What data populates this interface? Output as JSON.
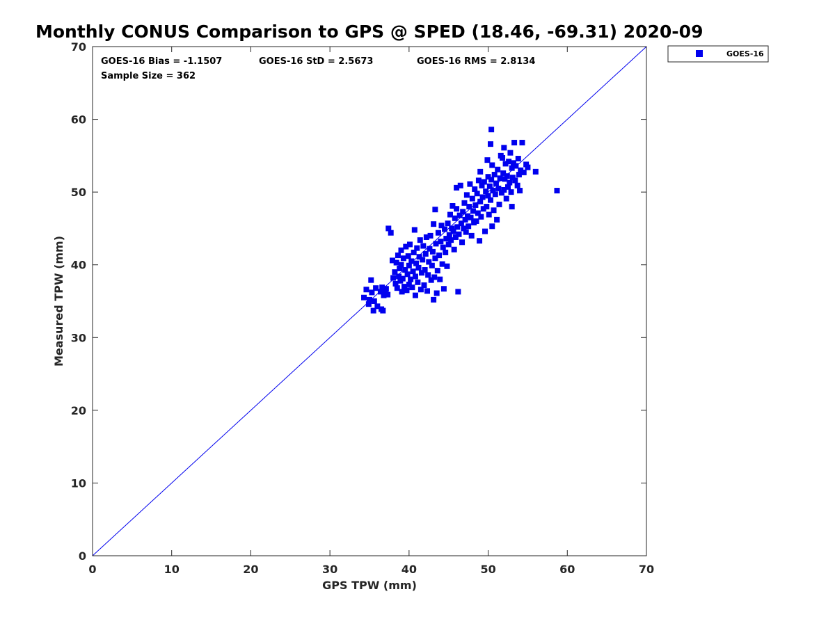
{
  "chart_data": {
    "type": "scatter",
    "title": "Monthly CONUS Comparison to GPS @ SPED (18.46, -69.31) 2020-09",
    "xlabel": "GPS TPW (mm)",
    "ylabel": "Measured TPW (mm)",
    "xlim": [
      0,
      70
    ],
    "ylim": [
      0,
      70
    ],
    "xticks": [
      0,
      10,
      20,
      30,
      40,
      50,
      60,
      70
    ],
    "yticks": [
      0,
      10,
      20,
      30,
      40,
      50,
      60,
      70
    ],
    "grid": false,
    "legend_position": "outside-top-right",
    "annotations": [
      "GOES-16 Bias = -1.1507",
      "GOES-16 StD = 2.5673",
      "GOES-16 RMS = 2.8134",
      "Sample Size = 362"
    ],
    "reference_line": {
      "x": [
        0,
        70
      ],
      "y": [
        0,
        70
      ]
    },
    "series": [
      {
        "name": "GOES-16",
        "color": "#0000ee",
        "marker": "square",
        "points": [
          [
            34.3,
            35.5
          ],
          [
            34.6,
            36.6
          ],
          [
            34.9,
            34.6
          ],
          [
            35.0,
            35.2
          ],
          [
            35.2,
            37.9
          ],
          [
            35.3,
            36.2
          ],
          [
            35.5,
            33.7
          ],
          [
            35.6,
            35.0
          ],
          [
            35.8,
            36.8
          ],
          [
            36.0,
            34.3
          ],
          [
            36.4,
            36.3
          ],
          [
            36.5,
            33.9
          ],
          [
            36.6,
            36.9
          ],
          [
            36.7,
            33.7
          ],
          [
            36.8,
            35.8
          ],
          [
            37.0,
            36.2
          ],
          [
            37.1,
            36.7
          ],
          [
            37.3,
            35.9
          ],
          [
            37.4,
            45.0
          ],
          [
            37.7,
            44.4
          ],
          [
            37.9,
            40.6
          ],
          [
            38.0,
            38.2
          ],
          [
            38.2,
            39.0
          ],
          [
            38.3,
            37.4
          ],
          [
            38.4,
            40.3
          ],
          [
            38.5,
            36.8
          ],
          [
            38.6,
            41.3
          ],
          [
            38.7,
            38.4
          ],
          [
            38.8,
            39.5
          ],
          [
            38.9,
            37.8
          ],
          [
            39.0,
            40.0
          ],
          [
            39.0,
            42.0
          ],
          [
            39.1,
            36.3
          ],
          [
            39.2,
            38.1
          ],
          [
            39.3,
            40.9
          ],
          [
            39.4,
            37.0
          ],
          [
            39.5,
            39.3
          ],
          [
            39.6,
            42.5
          ],
          [
            39.7,
            36.5
          ],
          [
            39.8,
            38.7
          ],
          [
            39.9,
            41.2
          ],
          [
            40.0,
            37.3
          ],
          [
            40.0,
            39.9
          ],
          [
            40.1,
            42.8
          ],
          [
            40.2,
            38.0
          ],
          [
            40.3,
            40.5
          ],
          [
            40.4,
            36.9
          ],
          [
            40.5,
            39.1
          ],
          [
            40.6,
            41.7
          ],
          [
            40.7,
            44.8
          ],
          [
            40.8,
            35.8
          ],
          [
            40.8,
            38.4
          ],
          [
            40.9,
            40.2
          ],
          [
            41.0,
            42.3
          ],
          [
            41.1,
            37.6
          ],
          [
            41.2,
            39.6
          ],
          [
            41.3,
            41.1
          ],
          [
            41.4,
            43.4
          ],
          [
            41.5,
            36.6
          ],
          [
            41.6,
            38.9
          ],
          [
            41.7,
            40.7
          ],
          [
            41.8,
            42.6
          ],
          [
            41.9,
            37.2
          ],
          [
            42.0,
            39.3
          ],
          [
            42.1,
            41.5
          ],
          [
            42.2,
            43.8
          ],
          [
            42.3,
            36.4
          ],
          [
            42.4,
            38.6
          ],
          [
            42.5,
            40.4
          ],
          [
            42.6,
            42.2
          ],
          [
            42.7,
            44.0
          ],
          [
            42.8,
            37.9
          ],
          [
            42.9,
            39.9
          ],
          [
            43.0,
            41.8
          ],
          [
            43.1,
            35.2
          ],
          [
            43.1,
            45.6
          ],
          [
            43.2,
            38.3
          ],
          [
            43.3,
            47.6
          ],
          [
            43.3,
            40.9
          ],
          [
            43.4,
            42.9
          ],
          [
            43.5,
            36.1
          ],
          [
            43.6,
            39.2
          ],
          [
            43.7,
            44.4
          ],
          [
            43.8,
            41.3
          ],
          [
            43.9,
            38.0
          ],
          [
            44.0,
            43.2
          ],
          [
            44.1,
            45.4
          ],
          [
            44.2,
            40.1
          ],
          [
            44.3,
            42.4
          ],
          [
            44.4,
            36.7
          ],
          [
            44.5,
            44.9
          ],
          [
            44.6,
            41.7
          ],
          [
            44.7,
            43.6
          ],
          [
            44.8,
            39.8
          ],
          [
            44.9,
            45.7
          ],
          [
            45.0,
            42.8
          ],
          [
            45.1,
            44.1
          ],
          [
            45.2,
            46.9
          ],
          [
            45.3,
            43.4
          ],
          [
            45.4,
            45.0
          ],
          [
            45.5,
            48.1
          ],
          [
            45.6,
            44.6
          ],
          [
            45.7,
            42.1
          ],
          [
            45.8,
            46.4
          ],
          [
            45.9,
            43.8
          ],
          [
            46.0,
            47.7
          ],
          [
            46.0,
            50.6
          ],
          [
            46.1,
            45.2
          ],
          [
            46.2,
            36.3
          ],
          [
            46.3,
            44.2
          ],
          [
            46.4,
            46.8
          ],
          [
            46.5,
            50.9
          ],
          [
            46.6,
            45.7
          ],
          [
            46.7,
            43.1
          ],
          [
            46.8,
            47.3
          ],
          [
            46.9,
            45.0
          ],
          [
            47.0,
            48.5
          ],
          [
            47.1,
            46.2
          ],
          [
            47.2,
            44.5
          ],
          [
            47.3,
            49.6
          ],
          [
            47.4,
            46.7
          ],
          [
            47.5,
            45.3
          ],
          [
            47.6,
            48.0
          ],
          [
            47.7,
            51.1
          ],
          [
            47.8,
            46.5
          ],
          [
            47.9,
            44.0
          ],
          [
            48.0,
            49.1
          ],
          [
            48.1,
            47.4
          ],
          [
            48.2,
            45.8
          ],
          [
            48.3,
            50.4
          ],
          [
            48.4,
            48.2
          ],
          [
            48.5,
            46.0
          ],
          [
            48.6,
            49.8
          ],
          [
            48.7,
            47.1
          ],
          [
            48.8,
            51.6
          ],
          [
            48.9,
            43.3
          ],
          [
            49.0,
            52.8
          ],
          [
            49.0,
            48.7
          ],
          [
            49.1,
            46.6
          ],
          [
            49.2,
            50.9
          ],
          [
            49.3,
            49.3
          ],
          [
            49.4,
            47.7
          ],
          [
            49.5,
            51.4
          ],
          [
            49.6,
            44.6
          ],
          [
            49.7,
            50.1
          ],
          [
            49.8,
            48.0
          ],
          [
            49.9,
            54.4
          ],
          [
            50.0,
            49.5
          ],
          [
            50.0,
            52.1
          ],
          [
            50.1,
            46.9
          ],
          [
            50.2,
            50.8
          ],
          [
            50.3,
            56.6
          ],
          [
            50.3,
            48.9
          ],
          [
            50.4,
            51.7
          ],
          [
            50.4,
            58.6
          ],
          [
            50.5,
            53.7
          ],
          [
            50.5,
            45.3
          ],
          [
            50.6,
            50.2
          ],
          [
            50.7,
            47.5
          ],
          [
            50.8,
            52.4
          ],
          [
            50.9,
            49.7
          ],
          [
            51.0,
            51.2
          ],
          [
            51.1,
            46.2
          ],
          [
            51.2,
            53.1
          ],
          [
            51.3,
            50.5
          ],
          [
            51.4,
            48.3
          ],
          [
            51.5,
            51.9
          ],
          [
            51.6,
            55.0
          ],
          [
            51.7,
            49.9
          ],
          [
            51.8,
            54.7
          ],
          [
            51.9,
            52.6
          ],
          [
            52.0,
            56.1
          ],
          [
            52.0,
            50.3
          ],
          [
            52.1,
            51.8
          ],
          [
            52.2,
            53.9
          ],
          [
            52.3,
            49.1
          ],
          [
            52.4,
            52.2
          ],
          [
            52.5,
            50.7
          ],
          [
            52.6,
            54.2
          ],
          [
            52.7,
            51.3
          ],
          [
            52.8,
            55.4
          ],
          [
            52.9,
            50.0
          ],
          [
            53.0,
            53.3
          ],
          [
            53.0,
            48.0
          ],
          [
            53.1,
            52.0
          ],
          [
            53.2,
            54.0
          ],
          [
            53.3,
            56.8
          ],
          [
            53.4,
            51.6
          ],
          [
            53.5,
            53.6
          ],
          [
            53.7,
            50.9
          ],
          [
            53.8,
            54.6
          ],
          [
            53.9,
            52.4
          ],
          [
            54.0,
            50.2
          ],
          [
            54.1,
            53.0
          ],
          [
            54.3,
            56.8
          ],
          [
            54.5,
            52.7
          ],
          [
            54.8,
            53.8
          ],
          [
            55.0,
            53.4
          ],
          [
            56.0,
            52.8
          ],
          [
            58.7,
            50.2
          ]
        ]
      }
    ]
  }
}
